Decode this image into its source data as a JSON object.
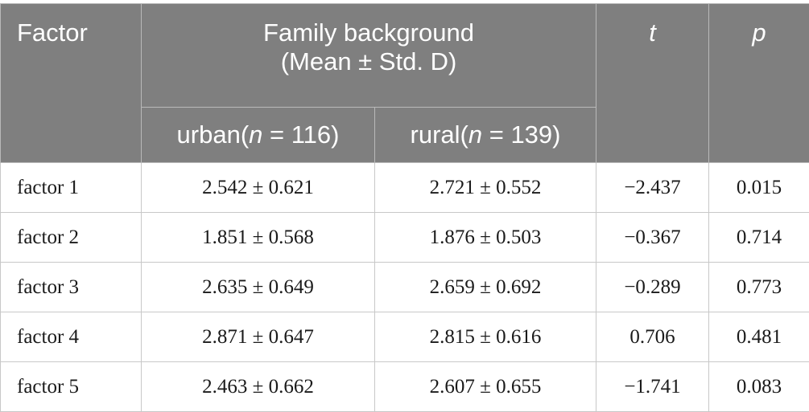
{
  "header": {
    "factor": "Factor",
    "family_line1": "Family background",
    "family_line2": "(Mean ± Std. D)",
    "t": "t",
    "p": "p",
    "urban_prefix": "urban(",
    "urban_n": "n",
    "urban_suffix": " = 116)",
    "rural_prefix": "rural(",
    "rural_n": "n",
    "rural_suffix": " = 139)"
  },
  "rows": [
    {
      "factor": "factor 1",
      "urban": "2.542 ± 0.621",
      "rural": "2.721 ± 0.552",
      "t": "−2.437",
      "p": "0.015"
    },
    {
      "factor": "factor 2",
      "urban": "1.851 ± 0.568",
      "rural": "1.876 ± 0.503",
      "t": "−0.367",
      "p": "0.714"
    },
    {
      "factor": "factor 3",
      "urban": "2.635 ± 0.649",
      "rural": "2.659 ± 0.692",
      "t": "−0.289",
      "p": "0.773"
    },
    {
      "factor": "factor 4",
      "urban": "2.871 ± 0.647",
      "rural": "2.815 ± 0.616",
      "t": "0.706",
      "p": "0.481"
    },
    {
      "factor": "factor 5",
      "urban": "2.463 ± 0.662",
      "rural": "2.607 ± 0.655",
      "t": "−1.741",
      "p": "0.083"
    }
  ]
}
